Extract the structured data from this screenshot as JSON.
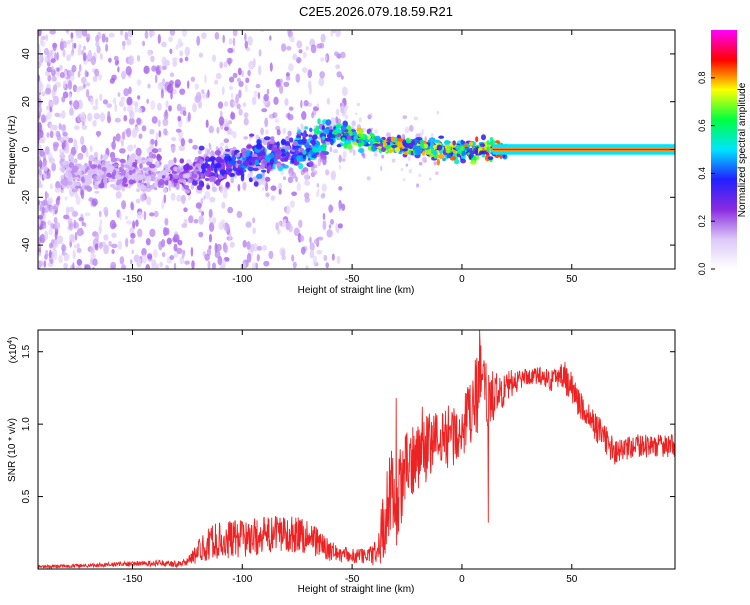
{
  "title": "C2E5.2026.079.18.59.R21",
  "chart_data": [
    {
      "type": "heatmap",
      "title": "C2E5.2026.079.18.59.R21",
      "xlabel": "Height of straight line (km)",
      "ylabel": "Frequency (Hz)",
      "xlim": [
        -193,
        97
      ],
      "ylim": [
        -50,
        50
      ],
      "xticks": [
        -150,
        -100,
        -50,
        0,
        50
      ],
      "xtick_labels": [
        "-150",
        "-100",
        "-50",
        "0",
        "50"
      ],
      "yticks": [
        -40,
        -20,
        0,
        20,
        40
      ],
      "ytick_labels": [
        "-40",
        "-20",
        "0",
        "20",
        "40"
      ],
      "colorbar": {
        "label": "Normalized spectral amplitude",
        "range": [
          0,
          1
        ],
        "ticks": [
          0.0,
          0.2,
          0.4,
          0.6,
          0.8
        ],
        "tick_labels": [
          "0.0",
          "0.2",
          "0.4",
          "0.6",
          "0.8"
        ],
        "stops": [
          "#ffffff",
          "#dcc8f8",
          "#8a2be2",
          "#2020ff",
          "#00e5ff",
          "#00ff40",
          "#ffff00",
          "#ff0000",
          "#ff00ff"
        ]
      },
      "ridge": {
        "x": [
          -180,
          -160,
          -140,
          -125,
          -115,
          -100,
          -90,
          -80,
          -70,
          -60,
          -55,
          -50,
          -45,
          -40,
          -30,
          -20,
          -10,
          0,
          10,
          20,
          40,
          60,
          80,
          97
        ],
        "frequency": [
          -10,
          -10,
          -11,
          -10,
          -8,
          -5,
          -4,
          -2,
          1,
          6,
          7,
          5,
          4,
          3,
          2,
          1,
          0,
          -1,
          0,
          0,
          0,
          0,
          0,
          0
        ],
        "amplitude": [
          0.15,
          0.2,
          0.2,
          0.25,
          0.35,
          0.4,
          0.42,
          0.45,
          0.5,
          0.55,
          0.6,
          0.65,
          0.7,
          0.72,
          0.75,
          0.75,
          0.75,
          0.75,
          0.8,
          0.85,
          0.9,
          0.9,
          0.9,
          0.9
        ]
      }
    },
    {
      "type": "line",
      "xlabel": "Height of straight line (km)",
      "ylabel": "SNR (10 * v/v)",
      "y_multiplier": "(x10",
      "y_multiplier_exp": "4",
      "y_multiplier_close": ")",
      "xlim": [
        -193,
        97
      ],
      "ylim": [
        0,
        16500
      ],
      "xticks": [
        -150,
        -100,
        -50,
        0,
        50
      ],
      "xtick_labels": [
        "-150",
        "-100",
        "-50",
        "0",
        "50"
      ],
      "yticks": [
        5000,
        10000,
        15000
      ],
      "ytick_labels": [
        "0.5",
        "1.0",
        "1.5"
      ],
      "color": "#ee2222",
      "series": [
        {
          "name": "SNR",
          "x": [
            -193,
            -180,
            -160,
            -140,
            -130,
            -125,
            -120,
            -115,
            -110,
            -100,
            -90,
            -80,
            -70,
            -65,
            -60,
            -50,
            -42,
            -38,
            -35,
            -32,
            -30,
            -28,
            -25,
            -20,
            -10,
            0,
            5,
            8,
            10,
            15,
            20,
            25,
            30,
            35,
            40,
            45,
            50,
            55,
            60,
            65,
            70,
            80,
            90,
            97
          ],
          "y": [
            150,
            200,
            300,
            400,
            350,
            500,
            1200,
            1800,
            2000,
            2100,
            2300,
            2500,
            2300,
            1800,
            1200,
            900,
            900,
            1500,
            3500,
            6000,
            4000,
            5500,
            7000,
            8000,
            9000,
            9500,
            11000,
            13000,
            11500,
            12000,
            12500,
            13000,
            13300,
            13400,
            13000,
            13500,
            12500,
            11000,
            10000,
            9000,
            8000,
            8500,
            8500,
            8500
          ],
          "noise": [
            100,
            120,
            150,
            200,
            200,
            250,
            800,
            1200,
            1300,
            1300,
            1300,
            1300,
            1300,
            1000,
            700,
            500,
            600,
            1500,
            2500,
            3000,
            3000,
            3000,
            2500,
            2500,
            2200,
            2200,
            2500,
            3500,
            3000,
            1500,
            1200,
            800,
            600,
            600,
            800,
            800,
            1200,
            1000,
            1000,
            1000,
            900,
            800,
            800,
            800
          ],
          "spikes": [
            {
              "x": -30,
              "y": 11800
            },
            {
              "x": -18,
              "y": 11200
            },
            {
              "x": 8,
              "y": 16500
            },
            {
              "x": 12,
              "y": 3200
            },
            {
              "x": 15,
              "y": 13200
            },
            {
              "x": 47,
              "y": 14300
            }
          ]
        }
      ]
    }
  ]
}
